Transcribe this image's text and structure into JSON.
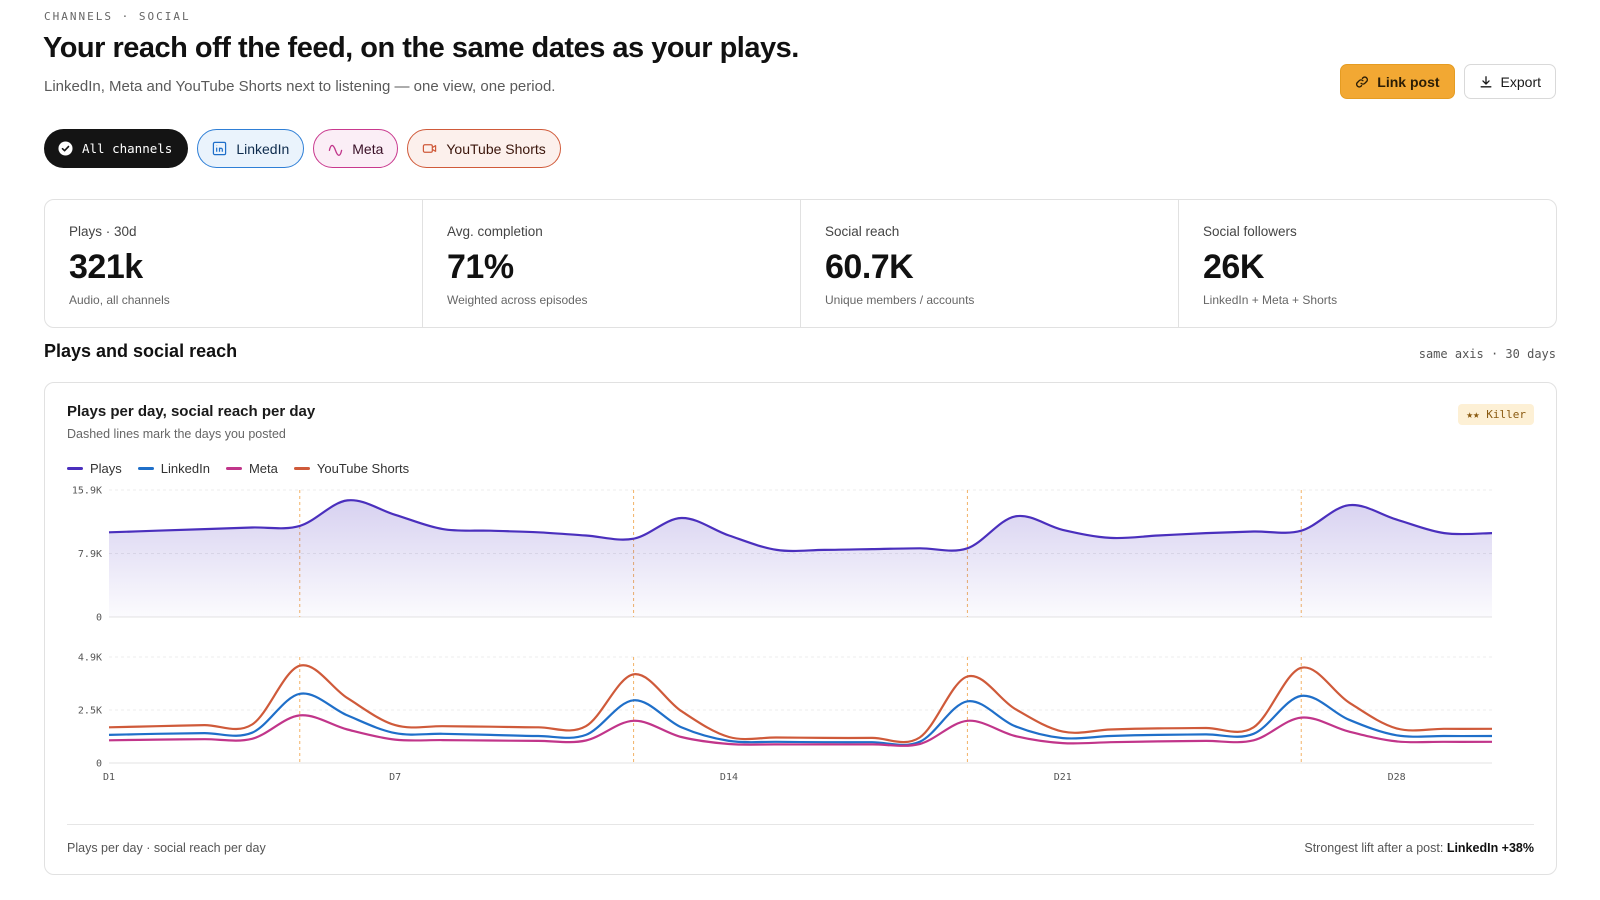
{
  "header": {
    "eyebrow": "CHANNELS · SOCIAL",
    "title": "Your reach off the feed, on the same dates as your plays.",
    "subtitle": "LinkedIn, Meta and YouTube Shorts next to listening — one view, one period."
  },
  "actions": {
    "link_post": "Link post",
    "export": "Export"
  },
  "filters": {
    "all": "All channels",
    "linkedin": "LinkedIn",
    "meta": "Meta",
    "youtube": "YouTube Shorts"
  },
  "kpis": [
    {
      "label": "Plays · 30d",
      "value": "321k",
      "sub": "Audio, all channels"
    },
    {
      "label": "Avg. completion",
      "value": "71%",
      "sub": "Weighted across episodes"
    },
    {
      "label": "Social reach",
      "value": "60.7K",
      "sub": "Unique members / accounts"
    },
    {
      "label": "Social followers",
      "value": "26K",
      "sub": "LinkedIn + Meta + Shorts"
    }
  ],
  "section": {
    "title": "Plays and social reach",
    "meta": "same axis · 30 days"
  },
  "card": {
    "title": "Plays per day, social reach per day",
    "subtitle": "Dashed lines mark the days you posted",
    "badge": "★★ Killer",
    "footer_left": "Plays per day · social reach per day",
    "footer_right_prefix": "Strongest lift after a post:",
    "footer_right_value": "LinkedIn +38%"
  },
  "colors": {
    "plays": "#4a2fbd",
    "linkedin": "#1f6fc9",
    "meta": "#c1358a",
    "youtube": "#cf5a3a",
    "post_marker": "#f2b266"
  },
  "chart_data": {
    "type": "line",
    "x": [
      "D1",
      "D2",
      "D3",
      "D4",
      "D5",
      "D6",
      "D7",
      "D8",
      "D9",
      "D10",
      "D11",
      "D12",
      "D13",
      "D14",
      "D15",
      "D16",
      "D17",
      "D18",
      "D19",
      "D20",
      "D21",
      "D22",
      "D23",
      "D24",
      "D25",
      "D26",
      "D27",
      "D28",
      "D29",
      "D30"
    ],
    "x_tick_labels": [
      "D1",
      "D7",
      "D14",
      "D21",
      "D28"
    ],
    "post_days": [
      "D5",
      "D12",
      "D19",
      "D26"
    ],
    "panels": [
      {
        "id": "plays",
        "ylim": [
          0,
          15900
        ],
        "y_tick_labels": [
          "0",
          "7.9K",
          "15.9K"
        ],
        "series": [
          {
            "name": "Plays",
            "values": [
              10600,
              10800,
              11000,
              11200,
              11400,
              14600,
              12800,
              11000,
              10800,
              10600,
              10200,
              9800,
              12400,
              10200,
              8400,
              8400,
              8500,
              8600,
              8600,
              12600,
              10900,
              9900,
              10200,
              10500,
              10700,
              10800,
              14000,
              12200,
              10500,
              10500
            ]
          }
        ]
      },
      {
        "id": "social",
        "ylim": [
          0,
          4900
        ],
        "y_tick_labels": [
          "0",
          "2.5K",
          "4.9K"
        ],
        "series": [
          {
            "name": "LinkedIn",
            "values": [
              1300,
              1350,
              1380,
              1400,
              3200,
              2200,
              1380,
              1350,
              1300,
              1250,
              1300,
              2900,
              1650,
              1020,
              980,
              960,
              960,
              980,
              2850,
              1700,
              1150,
              1250,
              1300,
              1320,
              1350,
              3100,
              2000,
              1280,
              1250,
              1250
            ]
          },
          {
            "name": "Meta",
            "values": [
              1050,
              1080,
              1100,
              1120,
              2200,
              1550,
              1080,
              1060,
              1040,
              1020,
              1040,
              1950,
              1200,
              880,
              860,
              860,
              860,
              880,
              1950,
              1250,
              920,
              960,
              1000,
              1020,
              1050,
              2100,
              1450,
              1000,
              980,
              980
            ]
          },
          {
            "name": "YouTube Shorts",
            "values": [
              1650,
              1700,
              1750,
              1780,
              4500,
              3000,
              1750,
              1700,
              1680,
              1650,
              1700,
              4100,
              2400,
              1200,
              1180,
              1160,
              1160,
              1180,
              4000,
              2500,
              1450,
              1550,
              1600,
              1620,
              1650,
              4400,
              2800,
              1600,
              1580,
              1580
            ]
          }
        ]
      }
    ]
  }
}
